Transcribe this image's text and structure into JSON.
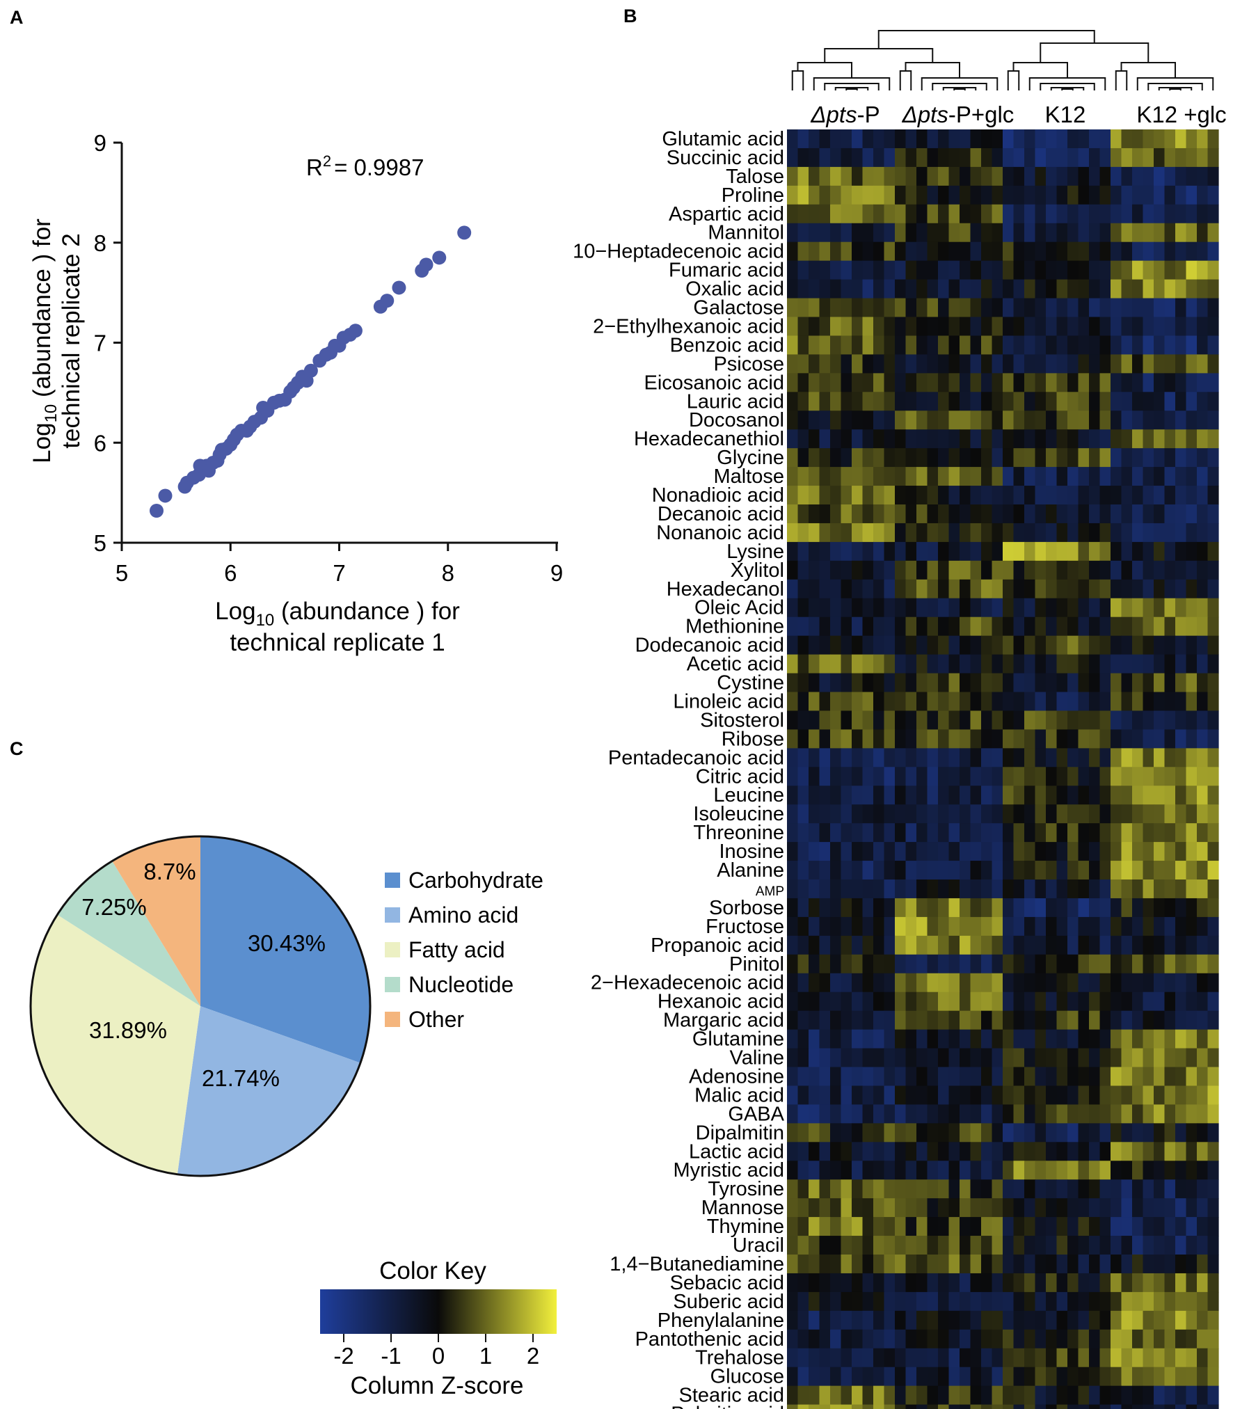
{
  "figure": {
    "panel_labels": [
      "A",
      "B",
      "C"
    ]
  },
  "chart_data": [
    {
      "panel": "A",
      "type": "scatter",
      "title": "",
      "annotation": {
        "r2_label": "R",
        "r2_sup": "2",
        "r2_value": "= 0.9987"
      },
      "xlabel": {
        "line1_prefix": "Log",
        "line1_sub": "10",
        "line1_suffix": " (abundance ) for",
        "line2": "technical replicate  1"
      },
      "ylabel": {
        "line1_prefix": "Log",
        "line1_sub": "10",
        "line1_suffix": " (abundance ) for",
        "line2": "technical replicate  2"
      },
      "xlim": [
        5,
        9
      ],
      "ylim": [
        5,
        9
      ],
      "xticks": [
        "5",
        "6",
        "7",
        "8",
        "9"
      ],
      "yticks": [
        "5",
        "6",
        "7",
        "8",
        "9"
      ],
      "point_color": "#4b5aa6",
      "points": [
        [
          5.32,
          5.32
        ],
        [
          5.4,
          5.47
        ],
        [
          5.58,
          5.56
        ],
        [
          5.6,
          5.6
        ],
        [
          5.66,
          5.65
        ],
        [
          5.71,
          5.68
        ],
        [
          5.72,
          5.77
        ],
        [
          5.78,
          5.77
        ],
        [
          5.8,
          5.72
        ],
        [
          5.84,
          5.8
        ],
        [
          5.88,
          5.82
        ],
        [
          5.9,
          5.88
        ],
        [
          5.92,
          5.93
        ],
        [
          5.96,
          5.94
        ],
        [
          6.0,
          5.98
        ],
        [
          6.03,
          6.03
        ],
        [
          6.06,
          6.08
        ],
        [
          6.1,
          6.12
        ],
        [
          6.15,
          6.12
        ],
        [
          6.18,
          6.16
        ],
        [
          6.22,
          6.21
        ],
        [
          6.28,
          6.25
        ],
        [
          6.3,
          6.35
        ],
        [
          6.34,
          6.32
        ],
        [
          6.4,
          6.4
        ],
        [
          6.45,
          6.42
        ],
        [
          6.5,
          6.43
        ],
        [
          6.55,
          6.51
        ],
        [
          6.58,
          6.55
        ],
        [
          6.62,
          6.6
        ],
        [
          6.66,
          6.66
        ],
        [
          6.7,
          6.62
        ],
        [
          6.74,
          6.72
        ],
        [
          6.82,
          6.82
        ],
        [
          6.88,
          6.88
        ],
        [
          6.92,
          6.9
        ],
        [
          6.96,
          6.97
        ],
        [
          7.0,
          6.97
        ],
        [
          7.04,
          7.05
        ],
        [
          7.1,
          7.08
        ],
        [
          7.15,
          7.12
        ],
        [
          7.38,
          7.36
        ],
        [
          7.44,
          7.42
        ],
        [
          7.55,
          7.55
        ],
        [
          7.76,
          7.72
        ],
        [
          7.8,
          7.78
        ],
        [
          7.92,
          7.85
        ],
        [
          8.15,
          8.1
        ]
      ]
    },
    {
      "panel": "B",
      "type": "heatmap",
      "group_labels": [
        {
          "prefix": "Δ",
          "italic": "pts",
          "suffix": "-P"
        },
        {
          "prefix": "Δ",
          "italic": "pts",
          "suffix": "-P+glc"
        },
        {
          "prefix": "",
          "italic": "",
          "suffix": "K12"
        },
        {
          "prefix": "",
          "italic": "",
          "suffix": "K12 +glc"
        }
      ],
      "columns_per_group": [
        10,
        10,
        10,
        10
      ],
      "rows": [
        {
          "label": "Glutamic acid",
          "pattern": [
            -1.2,
            -0.6,
            -1.4,
            1.2
          ]
        },
        {
          "label": "Succinic acid",
          "pattern": [
            -0.9,
            0.3,
            -1.2,
            1.0
          ]
        },
        {
          "label": "Talose",
          "pattern": [
            1.0,
            0.3,
            -0.5,
            -1.2
          ]
        },
        {
          "label": "Proline",
          "pattern": [
            1.4,
            -0.1,
            -0.3,
            -1.2
          ]
        },
        {
          "label": "Aspartic acid",
          "pattern": [
            1.1,
            0.5,
            -1.2,
            -0.9
          ]
        },
        {
          "label": "Mannitol",
          "pattern": [
            -0.9,
            0.3,
            -1.1,
            1.0
          ]
        },
        {
          "label": "10−Heptadecenoic acid",
          "pattern": [
            0.4,
            -0.4,
            0.3,
            -1.0
          ]
        },
        {
          "label": "Fumaric acid",
          "pattern": [
            -0.9,
            -0.6,
            -0.3,
            1.4
          ]
        },
        {
          "label": "Oxalic acid",
          "pattern": [
            -1.1,
            -0.5,
            -0.2,
            1.3
          ]
        },
        {
          "label": "Galactose",
          "pattern": [
            0.9,
            0.4,
            -0.8,
            -1.1
          ]
        },
        {
          "label": "2−Ethylhexanoic acid",
          "pattern": [
            0.8,
            0.0,
            -0.5,
            -1.2
          ]
        },
        {
          "label": "Benzoic acid",
          "pattern": [
            0.9,
            0.3,
            -0.7,
            -1.3
          ]
        },
        {
          "label": "Psicose",
          "pattern": [
            0.4,
            -0.4,
            -0.5,
            0.7
          ]
        },
        {
          "label": "Eicosanoic acid",
          "pattern": [
            0.6,
            0.0,
            0.5,
            -1.0
          ]
        },
        {
          "label": "Lauric acid",
          "pattern": [
            0.6,
            -0.3,
            0.4,
            -1.1
          ]
        },
        {
          "label": "Docosanol",
          "pattern": [
            -0.4,
            0.6,
            0.4,
            -0.8
          ]
        },
        {
          "label": "Hexadecanethiol",
          "pattern": [
            -0.6,
            -0.4,
            -0.5,
            1.0
          ]
        },
        {
          "label": "Glycine",
          "pattern": [
            0.3,
            -0.4,
            0.8,
            -0.9
          ]
        },
        {
          "label": "Maltose",
          "pattern": [
            0.9,
            0.8,
            -0.9,
            -1.0
          ]
        },
        {
          "label": "Nonadioic acid",
          "pattern": [
            1.1,
            -0.2,
            -0.6,
            -0.8
          ]
        },
        {
          "label": "Decanoic acid",
          "pattern": [
            0.8,
            0.2,
            -0.6,
            -1.0
          ]
        },
        {
          "label": "Nonanoic acid",
          "pattern": [
            1.1,
            0.2,
            -0.3,
            -0.9
          ]
        },
        {
          "label": "Lysine",
          "pattern": [
            -0.8,
            -0.6,
            1.4,
            -0.3
          ]
        },
        {
          "label": "Xylitol",
          "pattern": [
            -0.6,
            0.6,
            0.4,
            -0.8
          ]
        },
        {
          "label": "Hexadecanol",
          "pattern": [
            -0.7,
            0.8,
            0.3,
            -0.5
          ]
        },
        {
          "label": "Oleic Acid",
          "pattern": [
            -0.6,
            -0.6,
            -0.4,
            1.1
          ]
        },
        {
          "label": "Methionine",
          "pattern": [
            -0.7,
            0.6,
            -0.2,
            0.8
          ]
        },
        {
          "label": "Dodecanoic acid",
          "pattern": [
            -0.4,
            -0.2,
            0.6,
            -0.3
          ]
        },
        {
          "label": "Acetic acid",
          "pattern": [
            0.9,
            -0.3,
            -0.2,
            -0.5
          ]
        },
        {
          "label": "Cystine",
          "pattern": [
            -0.3,
            0.5,
            -0.5,
            0.6
          ]
        },
        {
          "label": "Linoleic acid",
          "pattern": [
            0.5,
            0.4,
            -1.0,
            0.4
          ]
        },
        {
          "label": "Sitosterol",
          "pattern": [
            0.4,
            0.5,
            0.5,
            -0.6
          ]
        },
        {
          "label": "Ribose",
          "pattern": [
            0.5,
            0.4,
            0.2,
            -1.1
          ]
        },
        {
          "label": "Pentadecanoic acid",
          "pattern": [
            -1.1,
            -0.9,
            -0.2,
            1.3
          ]
        },
        {
          "label": "Citric acid",
          "pattern": [
            -1.1,
            -1.0,
            0.2,
            1.2
          ]
        },
        {
          "label": "Leucine",
          "pattern": [
            -1.0,
            -0.9,
            0.3,
            1.2
          ]
        },
        {
          "label": "Isoleucine",
          "pattern": [
            -1.0,
            -0.9,
            0.1,
            1.2
          ]
        },
        {
          "label": "Threonine",
          "pattern": [
            -1.0,
            -0.9,
            0.2,
            1.2
          ]
        },
        {
          "label": "Inosine",
          "pattern": [
            -1.0,
            -0.8,
            0.1,
            1.3
          ]
        },
        {
          "label": "Alanine",
          "pattern": [
            -1.0,
            -0.8,
            0.0,
            1.3
          ]
        },
        {
          "label": "AMP",
          "pattern": [
            -1.0,
            -0.6,
            -0.6,
            1.2
          ]
        },
        {
          "label": "Sorbose",
          "pattern": [
            -0.4,
            1.2,
            -1.2,
            0.2
          ]
        },
        {
          "label": "Fructose",
          "pattern": [
            -0.6,
            1.3,
            -0.8,
            -0.4
          ]
        },
        {
          "label": "Propanoic acid",
          "pattern": [
            -0.3,
            1.2,
            -0.7,
            -0.3
          ]
        },
        {
          "label": "Pinitol",
          "pattern": [
            0.1,
            -0.8,
            0.3,
            0.6
          ]
        },
        {
          "label": "2−Hexadecenoic acid",
          "pattern": [
            -0.5,
            1.0,
            -0.2,
            -0.5
          ]
        },
        {
          "label": "Hexanoic acid",
          "pattern": [
            -0.6,
            0.9,
            -0.3,
            -0.6
          ]
        },
        {
          "label": "Margaric acid",
          "pattern": [
            -0.5,
            0.6,
            0.3,
            -0.7
          ]
        },
        {
          "label": "Glutamine",
          "pattern": [
            -1.0,
            -0.4,
            -0.3,
            1.2
          ]
        },
        {
          "label": "Valine",
          "pattern": [
            -1.0,
            -0.5,
            0.1,
            1.2
          ]
        },
        {
          "label": "Adenosine",
          "pattern": [
            -1.0,
            -0.5,
            0.1,
            1.1
          ]
        },
        {
          "label": "Malic acid",
          "pattern": [
            -1.0,
            -0.6,
            0.2,
            1.2
          ]
        },
        {
          "label": "GABA",
          "pattern": [
            -1.1,
            -0.8,
            0.2,
            1.1
          ]
        },
        {
          "label": "Dipalmitin",
          "pattern": [
            0.3,
            0.5,
            -1.1,
            -0.2
          ]
        },
        {
          "label": "Lactic acid",
          "pattern": [
            -0.5,
            -0.4,
            -0.3,
            1.0
          ]
        },
        {
          "label": "Myristic acid",
          "pattern": [
            -0.7,
            -0.8,
            1.1,
            0.1
          ]
        },
        {
          "label": "Tyrosine",
          "pattern": [
            1.0,
            0.4,
            -0.3,
            -1.1
          ]
        },
        {
          "label": "Mannose",
          "pattern": [
            0.9,
            0.3,
            -0.5,
            -1.1
          ]
        },
        {
          "label": "Thymine",
          "pattern": [
            1.0,
            0.5,
            -0.2,
            -1.2
          ]
        },
        {
          "label": "Uracil",
          "pattern": [
            0.6,
            0.5,
            -0.2,
            -1.1
          ]
        },
        {
          "label": "1,4−Butanediamine",
          "pattern": [
            0.6,
            0.7,
            -0.8,
            -0.2
          ]
        },
        {
          "label": "Sebacic acid",
          "pattern": [
            -0.7,
            -0.6,
            0.0,
            1.0
          ]
        },
        {
          "label": "Suberic acid",
          "pattern": [
            -0.4,
            -0.7,
            -0.5,
            1.0
          ]
        },
        {
          "label": "Phenylalanine",
          "pattern": [
            -1.0,
            -0.3,
            -0.2,
            1.2
          ]
        },
        {
          "label": "Pantothenic acid",
          "pattern": [
            -0.9,
            -0.5,
            0.1,
            1.0
          ]
        },
        {
          "label": "Trehalose",
          "pattern": [
            -0.9,
            -0.8,
            0.5,
            1.2
          ]
        },
        {
          "label": "Glucose",
          "pattern": [
            -1.0,
            -0.8,
            0.3,
            1.1
          ]
        },
        {
          "label": "Stearic acid",
          "pattern": [
            1.0,
            0.3,
            -0.2,
            -0.8
          ]
        },
        {
          "label": "Palmitic acid",
          "pattern": [
            1.1,
            0.3,
            -0.1,
            -0.9
          ]
        }
      ],
      "color_key": {
        "title": "Color Key",
        "label": "Column Z-score",
        "ticks": [
          "-2",
          "-1",
          "0",
          "1",
          "2"
        ],
        "range": [
          -2.5,
          2.5
        ],
        "low_color": "#1f3e9c",
        "mid_color": "#0a0a0a",
        "high_color": "#f2f03c"
      }
    },
    {
      "panel": "C",
      "type": "pie",
      "slices": [
        {
          "name": "Carbohydrate",
          "value": 30.43,
          "label": "30.43%",
          "color": "#5b8fcf"
        },
        {
          "name": "Amino acid",
          "value": 21.74,
          "label": "21.74%",
          "color": "#92b6e2"
        },
        {
          "name": "Fatty acid",
          "value": 31.89,
          "label": "31.89%",
          "color": "#ecf0c3"
        },
        {
          "name": "Nucleotide",
          "value": 7.25,
          "label": "7.25%",
          "color": "#b4dccb"
        },
        {
          "name": "Other",
          "value": 8.7,
          "label": "8.7%",
          "color": "#f4b57d"
        }
      ]
    }
  ]
}
